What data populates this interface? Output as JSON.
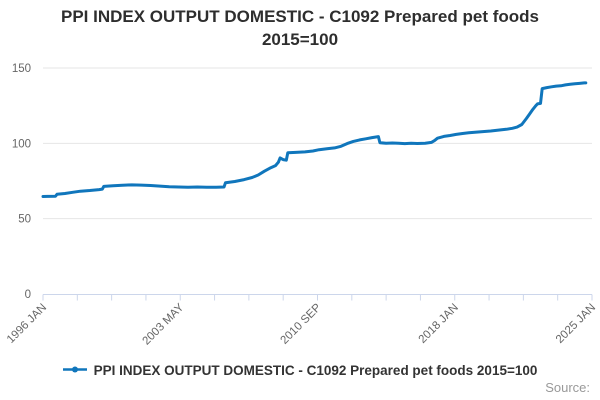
{
  "title": {
    "line1": "PPI INDEX OUTPUT DOMESTIC - C1092 Prepared pet foods",
    "line2": "2015=100"
  },
  "legend": {
    "label": "PPI INDEX OUTPUT DOMESTIC - C1092 Prepared pet foods 2015=100"
  },
  "footer": {
    "source_label": "Source:"
  },
  "colors": {
    "line": "#1076bc",
    "grid": "#e6e6e6",
    "axis": "#ccd6eb",
    "tick_label": "#666666",
    "title": "#2e2e2e",
    "legend_text": "#333333",
    "source_text": "#999999"
  },
  "chart_data": {
    "type": "line",
    "title": "PPI INDEX OUTPUT DOMESTIC - C1092 Prepared pet foods 2015=100",
    "xlabel": "",
    "ylabel": "",
    "ylim": [
      0,
      150
    ],
    "y_ticks": [
      0,
      50,
      100,
      150
    ],
    "x_tick_labels": [
      "1996 JAN",
      "2003 MAY",
      "2010 SEP",
      "2018 JAN",
      "2025 JAN"
    ],
    "x_tick_total": 17,
    "x_label_every": 4,
    "x_range_years": [
      1996.0,
      2025.33
    ],
    "grid": true,
    "legend_position": "bottom",
    "series": [
      {
        "name": "PPI INDEX OUTPUT DOMESTIC - C1092 Prepared pet foods 2015=100",
        "color": "#1076bc",
        "points": [
          [
            1996.0,
            64.7
          ],
          [
            1996.25,
            64.8
          ],
          [
            1996.67,
            64.9
          ],
          [
            1996.75,
            66.2
          ],
          [
            1997.17,
            66.7
          ],
          [
            1997.58,
            67.5
          ],
          [
            1998.0,
            68.2
          ],
          [
            1998.5,
            68.7
          ],
          [
            1999.0,
            69.3
          ],
          [
            1999.17,
            69.6
          ],
          [
            1999.25,
            71.4
          ],
          [
            1999.75,
            71.9
          ],
          [
            2000.25,
            72.2
          ],
          [
            2000.75,
            72.4
          ],
          [
            2001.25,
            72.3
          ],
          [
            2001.75,
            72.0
          ],
          [
            2002.25,
            71.6
          ],
          [
            2002.75,
            71.2
          ],
          [
            2003.25,
            71.0
          ],
          [
            2003.75,
            70.9
          ],
          [
            2004.25,
            71.0
          ],
          [
            2004.75,
            70.8
          ],
          [
            2005.25,
            70.9
          ],
          [
            2005.67,
            71.0
          ],
          [
            2005.75,
            73.9
          ],
          [
            2006.25,
            74.7
          ],
          [
            2006.75,
            75.9
          ],
          [
            2007.17,
            77.3
          ],
          [
            2007.5,
            79.0
          ],
          [
            2007.83,
            81.5
          ],
          [
            2008.17,
            83.8
          ],
          [
            2008.42,
            85.2
          ],
          [
            2008.58,
            87.5
          ],
          [
            2008.67,
            90.3
          ],
          [
            2008.83,
            89.2
          ],
          [
            2009.0,
            88.8
          ],
          [
            2009.08,
            93.7
          ],
          [
            2009.5,
            94.0
          ],
          [
            2010.0,
            94.3
          ],
          [
            2010.42,
            94.9
          ],
          [
            2010.75,
            95.8
          ],
          [
            2011.17,
            96.4
          ],
          [
            2011.58,
            97.0
          ],
          [
            2011.92,
            98.0
          ],
          [
            2012.25,
            99.8
          ],
          [
            2012.58,
            101.3
          ],
          [
            2012.92,
            102.3
          ],
          [
            2013.25,
            103.0
          ],
          [
            2013.58,
            103.8
          ],
          [
            2013.92,
            104.5
          ],
          [
            2014.0,
            100.4
          ],
          [
            2014.33,
            100.0
          ],
          [
            2014.67,
            100.2
          ],
          [
            2015.0,
            100.1
          ],
          [
            2015.33,
            99.8
          ],
          [
            2015.67,
            100.0
          ],
          [
            2016.0,
            99.9
          ],
          [
            2016.42,
            100.1
          ],
          [
            2016.75,
            100.6
          ],
          [
            2016.92,
            101.8
          ],
          [
            2017.08,
            103.4
          ],
          [
            2017.42,
            104.6
          ],
          [
            2017.75,
            105.2
          ],
          [
            2018.08,
            105.9
          ],
          [
            2018.42,
            106.5
          ],
          [
            2018.75,
            107.0
          ],
          [
            2019.08,
            107.4
          ],
          [
            2019.5,
            107.8
          ],
          [
            2019.92,
            108.2
          ],
          [
            2020.33,
            108.8
          ],
          [
            2020.75,
            109.3
          ],
          [
            2021.08,
            110.0
          ],
          [
            2021.33,
            110.8
          ],
          [
            2021.58,
            112.5
          ],
          [
            2021.83,
            116.5
          ],
          [
            2022.0,
            119.5
          ],
          [
            2022.17,
            122.5
          ],
          [
            2022.33,
            125.0
          ],
          [
            2022.42,
            126.2
          ],
          [
            2022.58,
            126.5
          ],
          [
            2022.67,
            136.3
          ],
          [
            2022.92,
            137.0
          ],
          [
            2023.17,
            137.5
          ],
          [
            2023.42,
            138.0
          ],
          [
            2023.67,
            138.2
          ],
          [
            2023.92,
            138.8
          ],
          [
            2024.17,
            139.2
          ],
          [
            2024.42,
            139.5
          ],
          [
            2024.67,
            139.8
          ],
          [
            2024.92,
            140.1
          ],
          [
            2025.0,
            140.1
          ]
        ]
      }
    ]
  }
}
